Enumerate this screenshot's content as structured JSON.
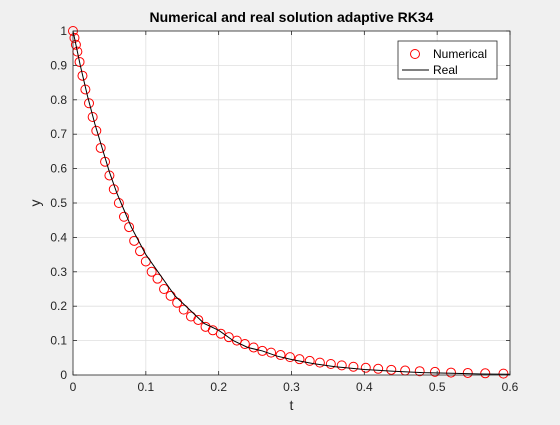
{
  "chart_data": {
    "type": "line",
    "title": "Numerical and real solution adaptive RK34",
    "xlabel": "t",
    "ylabel": "y",
    "xlim": [
      0,
      0.6
    ],
    "ylim": [
      0,
      1
    ],
    "xticks": [
      "0",
      "0.1",
      "0.2",
      "0.3",
      "0.4",
      "0.5",
      "0.6"
    ],
    "yticks": [
      "0",
      "0.1",
      "0.2",
      "0.3",
      "0.4",
      "0.5",
      "0.6",
      "0.7",
      "0.8",
      "0.9",
      "1"
    ],
    "grid": true,
    "legend_position": "top-right",
    "series": [
      {
        "name": "Numerical",
        "style": "markers",
        "marker": "circle",
        "color": "#ff0000",
        "x": [
          0,
          0.002,
          0.004,
          0.006,
          0.009,
          0.013,
          0.017,
          0.022,
          0.027,
          0.032,
          0.038,
          0.044,
          0.05,
          0.056,
          0.063,
          0.07,
          0.077,
          0.084,
          0.092,
          0.1,
          0.108,
          0.116,
          0.125,
          0.134,
          0.143,
          0.152,
          0.162,
          0.172,
          0.182,
          0.192,
          0.203,
          0.214,
          0.225,
          0.236,
          0.248,
          0.26,
          0.272,
          0.285,
          0.298,
          0.311,
          0.325,
          0.339,
          0.354,
          0.369,
          0.385,
          0.402,
          0.419,
          0.437,
          0.456,
          0.476,
          0.497,
          0.519,
          0.542,
          0.566,
          0.591
        ],
        "y": [
          1,
          0.98,
          0.96,
          0.94,
          0.91,
          0.87,
          0.83,
          0.79,
          0.75,
          0.71,
          0.66,
          0.62,
          0.58,
          0.54,
          0.5,
          0.46,
          0.43,
          0.39,
          0.36,
          0.33,
          0.3,
          0.28,
          0.25,
          0.23,
          0.21,
          0.19,
          0.17,
          0.16,
          0.14,
          0.13,
          0.12,
          0.11,
          0.1,
          0.09,
          0.08,
          0.07,
          0.065,
          0.058,
          0.052,
          0.046,
          0.041,
          0.036,
          0.032,
          0.028,
          0.024,
          0.021,
          0.018,
          0.015,
          0.013,
          0.011,
          0.009,
          0.007,
          0.006,
          0.005,
          0.004
        ]
      },
      {
        "name": "Real",
        "style": "line",
        "color": "#000000",
        "x": [
          0,
          0.01,
          0.02,
          0.03,
          0.04,
          0.05,
          0.06,
          0.07,
          0.08,
          0.09,
          0.1,
          0.12,
          0.14,
          0.16,
          0.18,
          0.2,
          0.22,
          0.24,
          0.26,
          0.28,
          0.3,
          0.33,
          0.36,
          0.4,
          0.44,
          0.48,
          0.52,
          0.56,
          0.6
        ],
        "y": [
          1,
          0.9,
          0.81,
          0.73,
          0.66,
          0.59,
          0.53,
          0.48,
          0.43,
          0.39,
          0.35,
          0.29,
          0.23,
          0.19,
          0.15,
          0.13,
          0.1,
          0.08,
          0.07,
          0.055,
          0.045,
          0.033,
          0.024,
          0.016,
          0.011,
          0.007,
          0.005,
          0.003,
          0.002
        ]
      }
    ]
  }
}
